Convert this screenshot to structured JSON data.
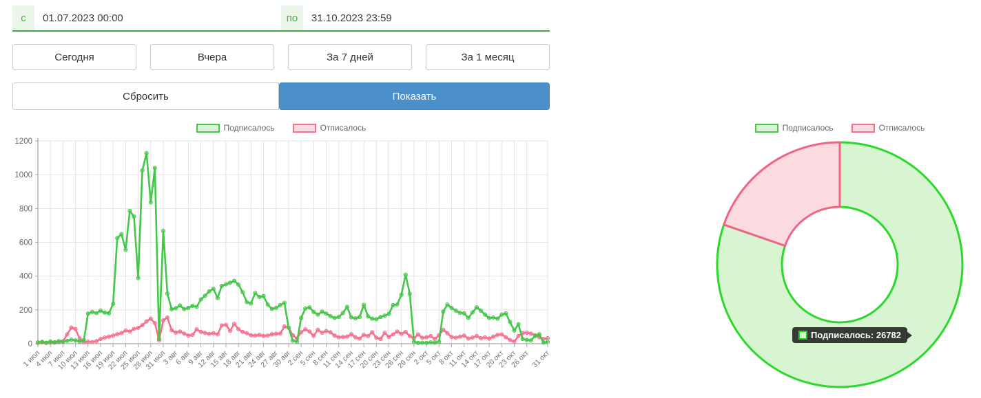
{
  "filters": {
    "from_label": "с",
    "from_value": "01.07.2023 00:00",
    "to_label": "по",
    "to_value": "31.10.2023 23:59",
    "quick_buttons": [
      "Сегодня",
      "Вчера",
      "За 7 дней",
      "За 1 месяц"
    ],
    "reset_label": "Сбросить",
    "show_label": "Показать"
  },
  "legend": {
    "subscribed_label": "Подписалось",
    "unsubscribed_label": "Отписалось"
  },
  "tooltip": {
    "label": "Подписалось",
    "value": 26782,
    "text": "Подписалось: 26782"
  },
  "colors": {
    "accent_green": "#3fa53f",
    "button_blue": "#4b90cb",
    "line_green": "#45c649",
    "line_pink": "#f4708f",
    "donut_green_border": "#2bd82b",
    "donut_green_fill": "#d6f5d0",
    "donut_pink_border": "#f06484",
    "donut_pink_fill": "#fbdae0",
    "grid": "#e4e4e4",
    "axis": "#a8a8a8",
    "tick_text": "#737373"
  },
  "chart_data": [
    {
      "type": "line",
      "title": "",
      "xlabel": "",
      "ylabel": "",
      "ylim": [
        0,
        1200
      ],
      "yticks": [
        0,
        200,
        400,
        600,
        800,
        1000,
        1200
      ],
      "grid": true,
      "legend_position": "top",
      "days_total": 123,
      "x_range_labels": [
        "1 июл",
        "31 окт"
      ],
      "ticks": [
        {
          "label": "1 июл",
          "day": 0
        },
        {
          "label": "4 июл",
          "day": 3
        },
        {
          "label": "7 июл",
          "day": 6
        },
        {
          "label": "10 июл",
          "day": 9
        },
        {
          "label": "13 июл",
          "day": 12
        },
        {
          "label": "16 июл",
          "day": 15
        },
        {
          "label": "19 июл",
          "day": 18
        },
        {
          "label": "22 июл",
          "day": 21
        },
        {
          "label": "25 июл",
          "day": 24
        },
        {
          "label": "28 июл",
          "day": 27
        },
        {
          "label": "31 июл",
          "day": 30
        },
        {
          "label": "3 авг",
          "day": 33
        },
        {
          "label": "6 авг",
          "day": 36
        },
        {
          "label": "9 авг",
          "day": 39
        },
        {
          "label": "12 авг",
          "day": 42
        },
        {
          "label": "15 авг",
          "day": 45
        },
        {
          "label": "18 авг",
          "day": 48
        },
        {
          "label": "21 авг",
          "day": 51
        },
        {
          "label": "24 авг",
          "day": 54
        },
        {
          "label": "27 авг",
          "day": 57
        },
        {
          "label": "30 авг",
          "day": 60
        },
        {
          "label": "2 сен",
          "day": 63
        },
        {
          "label": "5 сен",
          "day": 66
        },
        {
          "label": "8 сен",
          "day": 69
        },
        {
          "label": "11 сен",
          "day": 72
        },
        {
          "label": "14 сен",
          "day": 75
        },
        {
          "label": "17 сен",
          "day": 78
        },
        {
          "label": "20 сен",
          "day": 81
        },
        {
          "label": "23 сен",
          "day": 84
        },
        {
          "label": "26 сен",
          "day": 87
        },
        {
          "label": "29 сен",
          "day": 90
        },
        {
          "label": "2 окт",
          "day": 93
        },
        {
          "label": "5 окт",
          "day": 96
        },
        {
          "label": "8 окт",
          "day": 99
        },
        {
          "label": "11 окт",
          "day": 102
        },
        {
          "label": "14 окт",
          "day": 105
        },
        {
          "label": "17 окт",
          "day": 108
        },
        {
          "label": "20 окт",
          "day": 111
        },
        {
          "label": "23 окт",
          "day": 114
        },
        {
          "label": "26 окт",
          "day": 117
        },
        {
          "label": "31 окт",
          "day": 122
        }
      ],
      "series": [
        {
          "name": "Отписалось",
          "color": "#f4708f",
          "values": [
            5,
            8,
            4,
            7,
            6,
            9,
            14,
            55,
            95,
            86,
            30,
            8,
            12,
            10,
            15,
            28,
            36,
            42,
            48,
            56,
            63,
            78,
            72,
            88,
            94,
            110,
            132,
            148,
            122,
            20,
            138,
            155,
            80,
            66,
            72,
            60,
            48,
            52,
            85,
            70,
            64,
            58,
            62,
            55,
            108,
            112,
            76,
            118,
            86,
            70,
            62,
            50,
            48,
            52,
            46,
            48,
            56,
            58,
            60,
            102,
            95,
            50,
            30,
            68,
            85,
            72,
            46,
            82,
            65,
            75,
            68,
            48,
            38,
            40,
            42,
            56,
            38,
            30,
            52,
            45,
            68,
            35,
            28,
            65,
            40,
            55,
            72,
            58,
            70,
            45,
            32,
            55,
            35,
            38,
            45,
            28,
            50,
            82,
            62,
            40,
            35,
            42,
            48,
            30,
            36,
            45,
            32,
            38,
            30,
            42,
            52,
            55,
            38,
            22,
            12,
            45,
            62,
            65,
            60,
            50,
            38,
            28,
            32
          ]
        },
        {
          "name": "Подписалось",
          "color": "#45c649",
          "values": [
            8,
            11,
            6,
            13,
            9,
            15,
            11,
            17,
            24,
            19,
            13,
            21,
            178,
            188,
            181,
            196,
            184,
            180,
            236,
            625,
            648,
            556,
            786,
            752,
            388,
            1025,
            1128,
            836,
            1040,
            28,
            668,
            296,
            204,
            210,
            226,
            205,
            212,
            224,
            218,
            262,
            284,
            310,
            325,
            270,
            342,
            352,
            361,
            372,
            350,
            305,
            246,
            238,
            300,
            276,
            282,
            232,
            206,
            212,
            228,
            242,
            95,
            18,
            12,
            152,
            208,
            215,
            188,
            172,
            190,
            178,
            163,
            152,
            158,
            182,
            218,
            156,
            150,
            158,
            230,
            162,
            148,
            145,
            158,
            166,
            176,
            228,
            232,
            290,
            408,
            295,
            12,
            5,
            6,
            5,
            8,
            6,
            12,
            190,
            232,
            212,
            196,
            183,
            180,
            152,
            185,
            215,
            196,
            172,
            152,
            155,
            148,
            172,
            180,
            128,
            78,
            115,
            28,
            22,
            20,
            45,
            56,
            6,
            12
          ]
        }
      ]
    },
    {
      "type": "pie",
      "subtype": "doughnut",
      "labels": [
        "Подписалось",
        "Отписалось"
      ],
      "values": [
        26782,
        6570
      ],
      "note": "Отписалось value estimated from slice angle (~19.7%)",
      "percents": [
        80.3,
        19.7
      ],
      "tooltip_shown": "Подписалось: 26782",
      "legend_position": "top"
    }
  ]
}
